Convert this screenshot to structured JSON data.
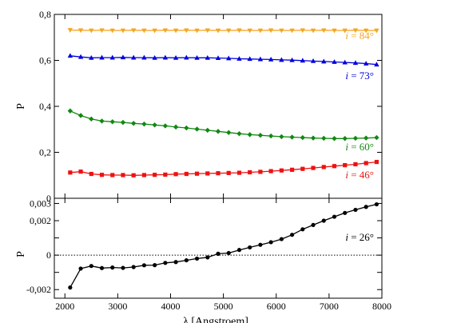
{
  "chart_data": [
    {
      "type": "line",
      "xlabel": "",
      "ylabel": "P",
      "xlim": [
        1800,
        8000
      ],
      "ylim": [
        0,
        0.8
      ],
      "yticks": [
        0,
        0.2,
        0.4,
        0.6,
        0.8
      ],
      "ytick_labels": [
        "0",
        "0,2",
        "0,4",
        "0,6",
        "0,8"
      ],
      "grid": false,
      "x": [
        2100,
        2300,
        2500,
        2700,
        2900,
        3100,
        3300,
        3500,
        3700,
        3900,
        4100,
        4300,
        4500,
        4700,
        4900,
        5100,
        5300,
        5500,
        5700,
        5900,
        6100,
        6300,
        6500,
        6700,
        6900,
        7100,
        7300,
        7500,
        7700,
        7900
      ],
      "series": [
        {
          "name": "i = 84°",
          "color": "#f5a623",
          "marker": "triangle-down",
          "values": [
            0.732,
            0.731,
            0.73,
            0.731,
            0.73,
            0.73,
            0.731,
            0.73,
            0.73,
            0.731,
            0.73,
            0.731,
            0.73,
            0.731,
            0.73,
            0.73,
            0.731,
            0.73,
            0.73,
            0.731,
            0.73,
            0.73,
            0.731,
            0.73,
            0.731,
            0.73,
            0.73,
            0.731,
            0.73,
            0.73
          ]
        },
        {
          "name": "i = 73°",
          "color": "#0000dd",
          "marker": "triangle-up",
          "values": [
            0.62,
            0.615,
            0.611,
            0.612,
            0.612,
            0.613,
            0.612,
            0.612,
            0.611,
            0.612,
            0.611,
            0.612,
            0.611,
            0.611,
            0.61,
            0.609,
            0.607,
            0.606,
            0.605,
            0.604,
            0.602,
            0.601,
            0.599,
            0.597,
            0.595,
            0.593,
            0.591,
            0.589,
            0.586,
            0.582
          ]
        },
        {
          "name": "i = 60°",
          "color": "#118811",
          "marker": "diamond",
          "values": [
            0.38,
            0.36,
            0.345,
            0.336,
            0.333,
            0.33,
            0.326,
            0.323,
            0.319,
            0.315,
            0.31,
            0.306,
            0.301,
            0.296,
            0.291,
            0.286,
            0.281,
            0.277,
            0.274,
            0.271,
            0.268,
            0.266,
            0.264,
            0.262,
            0.261,
            0.26,
            0.26,
            0.261,
            0.262,
            0.264
          ]
        },
        {
          "name": "i = 46°",
          "color": "#ee1111",
          "marker": "square",
          "values": [
            0.112,
            0.116,
            0.106,
            0.102,
            0.101,
            0.101,
            0.1,
            0.101,
            0.102,
            0.103,
            0.105,
            0.106,
            0.107,
            0.108,
            0.109,
            0.11,
            0.111,
            0.113,
            0.115,
            0.118,
            0.121,
            0.124,
            0.128,
            0.132,
            0.136,
            0.14,
            0.144,
            0.148,
            0.153,
            0.158
          ]
        }
      ]
    },
    {
      "type": "line",
      "xlabel": "λ [Angstroem]",
      "ylabel": "P",
      "xlim": [
        1800,
        8000
      ],
      "ylim": [
        -0.0025,
        0.0033
      ],
      "xticks": [
        2000,
        3000,
        4000,
        5000,
        6000,
        7000,
        8000
      ],
      "xtick_labels": [
        "2000",
        "3000",
        "4000",
        "5000",
        "6000",
        "7000",
        "8000"
      ],
      "yticks": [
        -0.002,
        -0.001,
        0,
        0.001,
        0.002,
        0.003
      ],
      "ytick_labels": [
        "-0,002",
        "",
        "0",
        "",
        "0,002",
        "0,003"
      ],
      "reference_line": 0,
      "grid": false,
      "x": [
        2100,
        2300,
        2500,
        2700,
        2900,
        3100,
        3300,
        3500,
        3700,
        3900,
        4100,
        4300,
        4500,
        4700,
        4900,
        5100,
        5300,
        5500,
        5700,
        5900,
        6100,
        6300,
        6500,
        6700,
        6900,
        7100,
        7300,
        7500,
        7700,
        7900
      ],
      "series": [
        {
          "name": "i = 26°",
          "color": "#000000",
          "marker": "circle",
          "values": [
            -0.00188,
            -0.00078,
            -0.00063,
            -0.00075,
            -0.00072,
            -0.00074,
            -0.00069,
            -0.00059,
            -0.00058,
            -0.00045,
            -0.0004,
            -0.0003,
            -0.0002,
            -0.00013,
            8e-05,
            0.00012,
            0.0003,
            0.00045,
            0.0006,
            0.00075,
            0.00093,
            0.00118,
            0.0015,
            0.00175,
            0.002,
            0.00223,
            0.00245,
            0.00263,
            0.0028,
            0.00295
          ]
        }
      ]
    }
  ],
  "labels": {
    "top_ylabel": "P",
    "bottom_ylabel": "P",
    "xlabel": "λ [Angstroem]"
  }
}
